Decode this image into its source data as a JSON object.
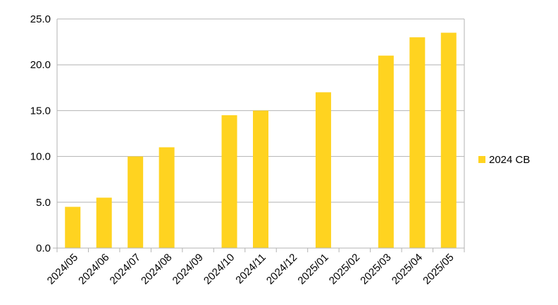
{
  "chart_data": {
    "type": "bar",
    "categories": [
      "2024/05",
      "2024/06",
      "2024/07",
      "2024/08",
      "2024/09",
      "2024/10",
      "2024/11",
      "2024/12",
      "2025/01",
      "2025/02",
      "2025/03",
      "2025/04",
      "2025/05"
    ],
    "series": [
      {
        "name": "2024 CB",
        "values": [
          4.5,
          5.5,
          10.0,
          11.0,
          null,
          14.5,
          15.0,
          null,
          17.0,
          null,
          21.0,
          23.0,
          23.5
        ],
        "color": "#FFD320"
      }
    ],
    "yticks": [
      "0.0",
      "5.0",
      "10.0",
      "15.0",
      "20.0",
      "25.0"
    ],
    "ylim": [
      0,
      25
    ],
    "grid": true,
    "legend_position": "right",
    "gridline_color": "#B3B3B3"
  }
}
